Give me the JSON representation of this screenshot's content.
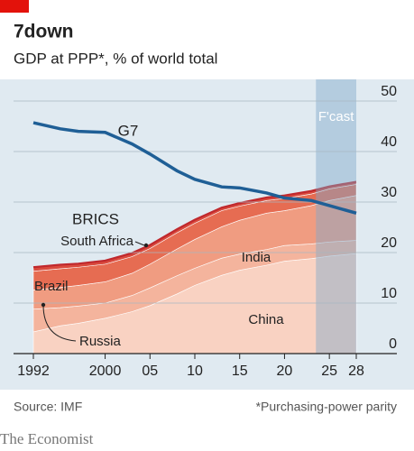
{
  "chart_data": {
    "type": "area",
    "title": "7down",
    "subtitle": "GDP at PPP*, % of world total",
    "x": [
      1992,
      1995,
      1997,
      2000,
      2003,
      2005,
      2008,
      2010,
      2013,
      2015,
      2018,
      2020,
      2023,
      2025,
      2028
    ],
    "series": [
      {
        "name": "China",
        "color": "#f9d2c2",
        "values": [
          4.3,
          5.5,
          6.0,
          7.0,
          8.3,
          9.5,
          11.8,
          13.5,
          15.5,
          16.5,
          17.5,
          18.3,
          18.8,
          19.3,
          19.8
        ]
      },
      {
        "name": "Russia",
        "color": "#f4b49d",
        "values": [
          4.5,
          3.6,
          3.4,
          3.0,
          3.2,
          3.5,
          3.6,
          3.4,
          3.4,
          3.2,
          3.1,
          3.1,
          2.9,
          2.8,
          2.6
        ]
      },
      {
        "name": "India",
        "color": "#f09c81",
        "values": [
          3.8,
          4.0,
          4.1,
          4.2,
          4.4,
          4.7,
          5.3,
          5.7,
          6.2,
          6.7,
          7.2,
          6.9,
          7.6,
          8.2,
          8.9
        ]
      },
      {
        "name": "Brazil",
        "color": "#e66c52",
        "values": [
          3.7,
          3.7,
          3.6,
          3.5,
          3.3,
          3.1,
          3.2,
          3.2,
          3.2,
          2.8,
          2.5,
          2.4,
          2.3,
          2.3,
          2.2
        ]
      },
      {
        "name": "South Africa",
        "color": "#d94a3d",
        "values": [
          0.8,
          0.8,
          0.7,
          0.7,
          0.7,
          0.7,
          0.7,
          0.7,
          0.6,
          0.6,
          0.6,
          0.6,
          0.6,
          0.5,
          0.5
        ]
      },
      {
        "name": "G7",
        "type": "line",
        "color": "#1f5f96",
        "values": [
          45.7,
          44.5,
          44.0,
          43.8,
          41.5,
          39.5,
          36.2,
          34.5,
          33.0,
          32.8,
          31.8,
          30.8,
          30.3,
          29.3,
          27.8
        ]
      }
    ],
    "total_line": {
      "label": "BRICS",
      "color": "#c0282d"
    },
    "forecast": {
      "label": "F'cast",
      "start": 2023.5
    },
    "xlim": [
      1992,
      2028
    ],
    "xticks": [
      1992,
      2000,
      {
        "value": 2005,
        "label": "05"
      },
      10,
      15,
      20,
      25,
      28
    ],
    "ylim": [
      0,
      50
    ],
    "yticks": [
      0,
      10,
      20,
      30,
      40,
      50
    ],
    "grid": true,
    "source": "Source: IMF",
    "footnote": "*Purchasing-power parity",
    "brand": "The Economist"
  }
}
